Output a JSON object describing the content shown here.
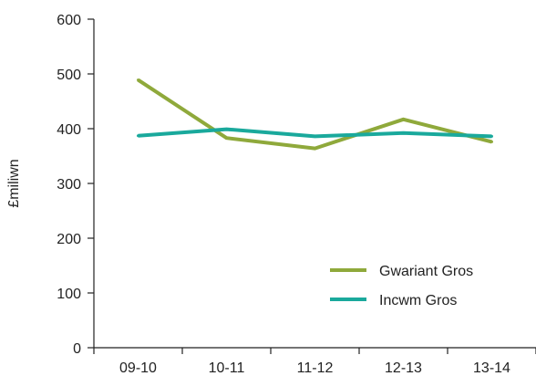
{
  "chart_data": {
    "type": "line",
    "categories": [
      "09-10",
      "10-11",
      "11-12",
      "12-13",
      "13-14"
    ],
    "series": [
      {
        "name": "Gwariant Gros",
        "color": "#8fa93b",
        "values": [
          489,
          383,
          364,
          417,
          376
        ]
      },
      {
        "name": "Incwm Gros",
        "color": "#1aa99c",
        "values": [
          387,
          399,
          386,
          392,
          386
        ]
      }
    ],
    "title": "",
    "xlabel": "",
    "ylabel": "£miliwn",
    "ylim": [
      0,
      600
    ],
    "yticks": [
      "0",
      "100",
      "200",
      "300",
      "400",
      "500",
      "600"
    ],
    "grid": false,
    "legend_position": "bottom-right"
  }
}
